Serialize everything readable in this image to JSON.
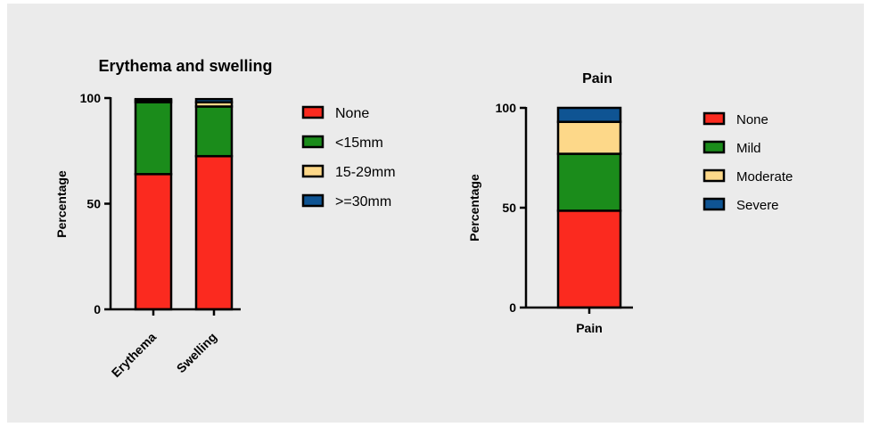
{
  "colors": {
    "background": "#ebebeb",
    "none": "#fb2a1f",
    "green": "#1b8c1b",
    "moderate": "#fdd889",
    "severe": "#0f5493"
  },
  "chart_data": [
    {
      "type": "bar",
      "stacked": true,
      "title": "Erythema and swelling",
      "xlabel": "",
      "ylabel": "Percentage",
      "ylim": [
        0,
        100
      ],
      "yticks": [
        0,
        50,
        100
      ],
      "categories": [
        "Erythema",
        "Swelling"
      ],
      "series": [
        {
          "name": "None",
          "color": "#fb2a1f",
          "values": [
            64,
            72.5
          ]
        },
        {
          "name": "<15mm",
          "color": "#1b8c1b",
          "values": [
            34,
            23.5
          ]
        },
        {
          "name": "15-29mm",
          "color": "#fdd889",
          "values": [
            1,
            2
          ]
        },
        {
          "name": ">=30mm",
          "color": "#0f5493",
          "values": [
            0.5,
            1.5
          ]
        }
      ],
      "legend_position": "right",
      "grid": false
    },
    {
      "type": "bar",
      "stacked": true,
      "title": "Pain",
      "xlabel": "",
      "ylabel": "Percentage",
      "ylim": [
        0,
        100
      ],
      "yticks": [
        0,
        50,
        100
      ],
      "categories": [
        "Pain"
      ],
      "series": [
        {
          "name": "None",
          "color": "#fb2a1f",
          "values": [
            48.5
          ]
        },
        {
          "name": "Mild",
          "color": "#1b8c1b",
          "values": [
            28.5
          ]
        },
        {
          "name": "Moderate",
          "color": "#fdd889",
          "values": [
            16
          ]
        },
        {
          "name": "Severe",
          "color": "#0f5493",
          "values": [
            7
          ]
        }
      ],
      "legend_position": "right",
      "grid": false
    }
  ]
}
